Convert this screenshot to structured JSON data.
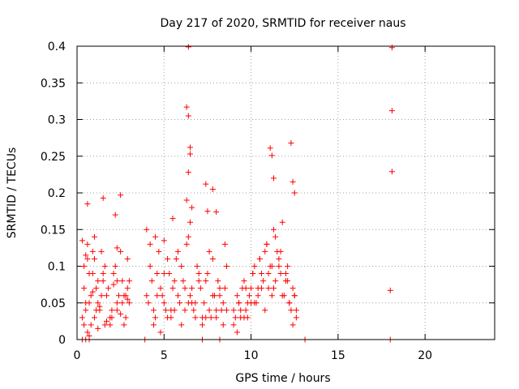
{
  "chart_data": {
    "type": "scatter",
    "title": "Day 217 of 2020, SRMTID for receiver naus",
    "xlabel": "GPS time / hours",
    "ylabel": "SRMTID / TECUs",
    "xlim": [
      0,
      24
    ],
    "ylim": [
      0,
      0.4
    ],
    "grid": true,
    "marker": "+",
    "marker_color": "#ff0000",
    "x_ticks": [
      0,
      5,
      10,
      15,
      20
    ],
    "x_tick_labels": [
      "0",
      "5",
      "10",
      "15",
      "20"
    ],
    "y_ticks": [
      0,
      0.05,
      0.1,
      0.15,
      0.2,
      0.25,
      0.3,
      0.35,
      0.4
    ],
    "y_tick_labels": [
      "0",
      "0.05",
      "0.1",
      "0.15",
      "0.2",
      "0.25",
      "0.3",
      "0.35",
      "0.4"
    ],
    "series": [
      {
        "name": "SRMTID",
        "x": [
          0.3,
          0.4,
          0.5,
          0.6,
          0.7,
          0.8,
          0.9,
          1.0,
          1.2,
          1.4,
          1.6,
          1.8,
          2.0,
          2.2,
          2.4,
          2.6,
          2.8,
          3.0,
          0.4,
          0.6,
          0.8,
          1.0,
          1.3,
          1.5,
          1.7,
          1.9,
          2.1,
          2.3,
          2.5,
          2.7,
          2.9,
          0.5,
          0.7,
          0.9,
          1.1,
          1.4,
          1.6,
          2.0,
          2.3,
          2.6,
          2.9,
          0.6,
          1.0,
          1.5,
          2.2,
          2.5,
          0.4,
          1.2,
          2.8,
          0.3,
          0.7,
          1.1,
          1.5,
          1.9,
          2.3,
          2.7,
          3.0,
          0.5,
          0.9,
          1.3,
          1.7,
          2.1,
          2.5,
          2.9,
          0.6,
          2.3,
          1.2,
          4.0,
          4.2,
          4.4,
          4.6,
          4.8,
          5.0,
          5.2,
          5.4,
          5.6,
          5.8,
          6.0,
          6.2,
          6.4,
          6.6,
          6.8,
          7.0,
          7.2,
          7.4,
          7.6,
          7.8,
          8.0,
          8.2,
          8.4,
          8.6,
          4.1,
          4.3,
          4.5,
          4.7,
          4.9,
          5.1,
          5.3,
          5.5,
          5.7,
          5.9,
          6.1,
          6.3,
          6.5,
          6.7,
          6.9,
          7.1,
          7.3,
          7.5,
          7.7,
          7.9,
          8.1,
          8.3,
          8.5,
          4.2,
          4.6,
          5.0,
          5.4,
          5.8,
          6.2,
          6.6,
          7.0,
          7.4,
          7.8,
          8.2,
          8.6,
          4.4,
          4.8,
          5.2,
          5.6,
          6.0,
          6.4,
          6.8,
          7.2,
          7.6,
          8.0,
          8.4,
          4.0,
          4.5,
          5.5,
          6.5,
          7.5,
          8.5,
          6.3,
          6.4,
          6.4,
          6.5,
          6.5,
          6.4,
          6.3,
          6.6,
          5.0,
          7.4,
          7.8,
          8.0,
          9.0,
          9.2,
          9.4,
          9.6,
          9.8,
          10.0,
          10.2,
          10.4,
          10.6,
          10.8,
          11.0,
          11.2,
          11.4,
          11.6,
          11.8,
          12.0,
          12.2,
          12.4,
          12.6,
          9.1,
          9.3,
          9.5,
          9.7,
          9.9,
          10.1,
          10.3,
          10.5,
          10.7,
          10.9,
          11.1,
          11.3,
          11.5,
          11.7,
          11.9,
          12.1,
          12.3,
          12.5,
          9.0,
          9.4,
          9.8,
          10.2,
          10.6,
          11.0,
          11.4,
          11.8,
          12.2,
          12.6,
          9.2,
          9.6,
          10.0,
          10.4,
          10.8,
          11.2,
          11.6,
          12.0,
          12.4,
          9.3,
          9.7,
          10.1,
          10.5,
          10.9,
          11.3,
          11.7,
          12.1,
          12.5,
          11.1,
          11.2,
          12.3,
          12.4,
          12.5,
          11.3,
          18.1,
          18.1,
          18.1,
          18.0,
          0.3,
          0.5,
          0.7,
          3.9,
          7.2,
          8.2,
          13.1,
          18.0
        ],
        "y": [
          0.135,
          0.02,
          0.04,
          0.11,
          0.005,
          0.06,
          0.09,
          0.03,
          0.05,
          0.12,
          0.02,
          0.07,
          0.04,
          0.1,
          0.06,
          0.08,
          0.03,
          0.05,
          0.07,
          0.13,
          0.02,
          0.11,
          0.04,
          0.08,
          0.06,
          0.03,
          0.09,
          0.05,
          0.12,
          0.02,
          0.07,
          0.05,
          0.09,
          0.12,
          0.04,
          0.06,
          0.1,
          0.03,
          0.08,
          0.05,
          0.11,
          0.185,
          0.14,
          0.193,
          0.17,
          0.197,
          0.1,
          0.08,
          0.06,
          0.03,
          0.05,
          0.07,
          0.09,
          0.02,
          0.04,
          0.06,
          0.08,
          0.115,
          0.065,
          0.045,
          0.025,
          0.075,
          0.035,
          0.055,
          0.01,
          0.125,
          0.015,
          0.06,
          0.13,
          0.04,
          0.09,
          0.07,
          0.05,
          0.11,
          0.03,
          0.08,
          0.06,
          0.1,
          0.04,
          0.14,
          0.07,
          0.05,
          0.09,
          0.03,
          0.08,
          0.12,
          0.06,
          0.04,
          0.07,
          0.05,
          0.1,
          0.05,
          0.08,
          0.03,
          0.12,
          0.06,
          0.04,
          0.09,
          0.07,
          0.11,
          0.05,
          0.08,
          0.13,
          0.06,
          0.04,
          0.1,
          0.07,
          0.05,
          0.09,
          0.03,
          0.06,
          0.08,
          0.04,
          0.07,
          0.1,
          0.06,
          0.09,
          0.04,
          0.12,
          0.07,
          0.05,
          0.08,
          0.03,
          0.11,
          0.06,
          0.04,
          0.02,
          0.01,
          0.03,
          0.04,
          0.02,
          0.05,
          0.03,
          0.02,
          0.04,
          0.03,
          0.02,
          0.15,
          0.14,
          0.165,
          0.16,
          0.175,
          0.13,
          0.317,
          0.305,
          0.399,
          0.262,
          0.253,
          0.228,
          0.19,
          0.18,
          0.135,
          0.212,
          0.205,
          0.174,
          0.04,
          0.06,
          0.03,
          0.08,
          0.05,
          0.07,
          0.1,
          0.06,
          0.09,
          0.12,
          0.07,
          0.1,
          0.08,
          0.11,
          0.06,
          0.09,
          0.05,
          0.07,
          0.04,
          0.03,
          0.05,
          0.07,
          0.04,
          0.06,
          0.09,
          0.05,
          0.11,
          0.08,
          0.13,
          0.1,
          0.07,
          0.12,
          0.09,
          0.06,
          0.08,
          0.04,
          0.06,
          0.02,
          0.04,
          0.03,
          0.05,
          0.07,
          0.09,
          0.14,
          0.16,
          0.05,
          0.03,
          0.01,
          0.03,
          0.05,
          0.07,
          0.04,
          0.06,
          0.1,
          0.08,
          0.02,
          0.05,
          0.07,
          0.09,
          0.11,
          0.13,
          0.15,
          0.12,
          0.1,
          0.06,
          0.261,
          0.251,
          0.268,
          0.215,
          0.2,
          0.22,
          0.398,
          0.312,
          0.229,
          0.067,
          0,
          0,
          0,
          0,
          0,
          0,
          0,
          0
        ]
      }
    ]
  }
}
